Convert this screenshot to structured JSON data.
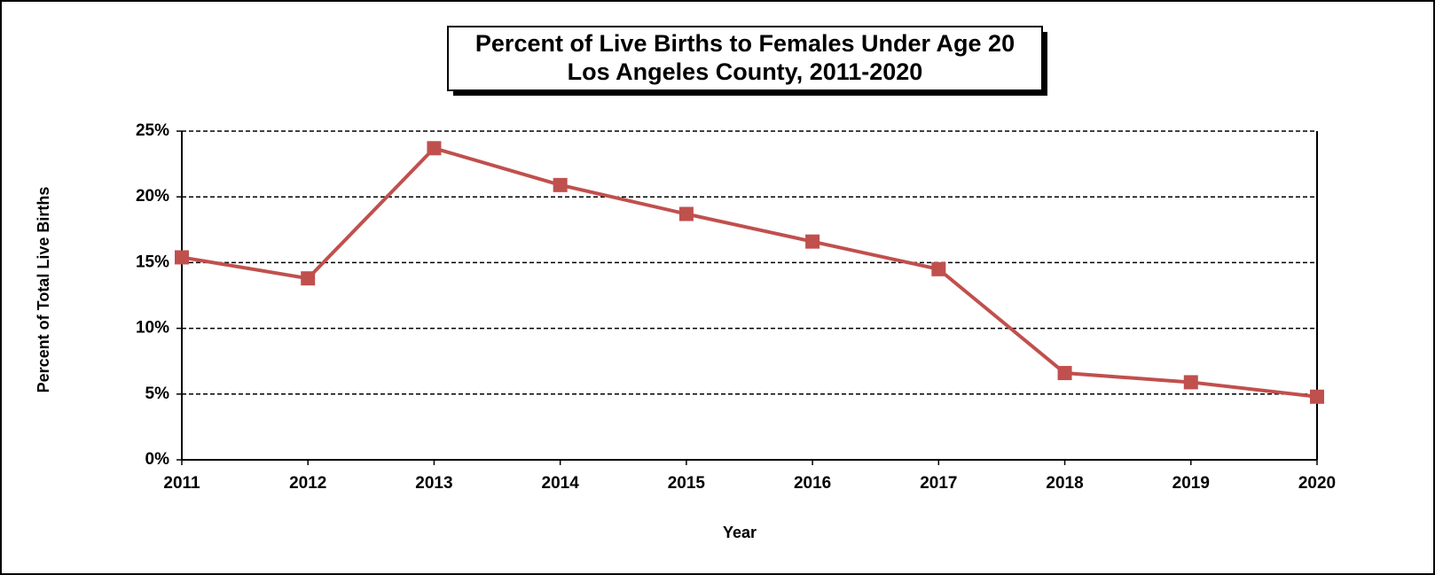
{
  "chart_data": {
    "type": "line",
    "title": "Percent of Live Births to Females Under Age 20",
    "subtitle": "Los Angeles County, 2011-2020",
    "x_label": "Year",
    "y_label": "Percent of Total Live Births",
    "categories": [
      "2011",
      "2012",
      "2013",
      "2014",
      "2015",
      "2016",
      "2017",
      "2018",
      "2019",
      "2020"
    ],
    "series": [
      {
        "name": "Percent of Live Births to Females Under Age 20",
        "color": "#c0504d",
        "values": [
          15.4,
          13.8,
          23.7,
          20.9,
          18.7,
          16.6,
          14.5,
          6.6,
          5.9,
          4.8
        ]
      }
    ],
    "ylim": [
      0,
      25
    ],
    "yticks": [
      {
        "value": 0,
        "label": "0%"
      },
      {
        "value": 5,
        "label": "5%"
      },
      {
        "value": 10,
        "label": "10%"
      },
      {
        "value": 15,
        "label": "15%"
      },
      {
        "value": 20,
        "label": "20%"
      },
      {
        "value": 25,
        "label": "25%"
      }
    ],
    "grid": true
  }
}
